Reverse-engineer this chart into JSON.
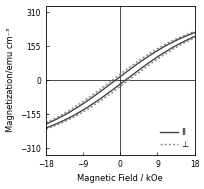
{
  "title": "",
  "xlabel": "Magnetic Field / kOe",
  "ylabel": "Magnetization/emu cm⁻³",
  "xlim": [
    -18,
    18
  ],
  "ylim": [
    -340,
    340
  ],
  "xticks": [
    -18,
    -9,
    0,
    9,
    18
  ],
  "yticks": [
    -310,
    -155,
    0,
    155,
    310
  ],
  "Ms": 300,
  "Hc_II": 1.2,
  "Hc_I": 2.0,
  "slope_II": 0.07,
  "slope_I": 0.07,
  "n_points": 800,
  "line_II_color": "#444444",
  "line_I_color": "#888888",
  "line_II_style": "-",
  "line_I_style": ":",
  "line_II_label": "II",
  "line_I_label": "⊥",
  "linewidth_II": 1.0,
  "linewidth_I": 1.0,
  "background": "#ffffff",
  "legend_fontsize": 6.0,
  "axis_fontsize": 6.0,
  "tick_fontsize": 5.5
}
